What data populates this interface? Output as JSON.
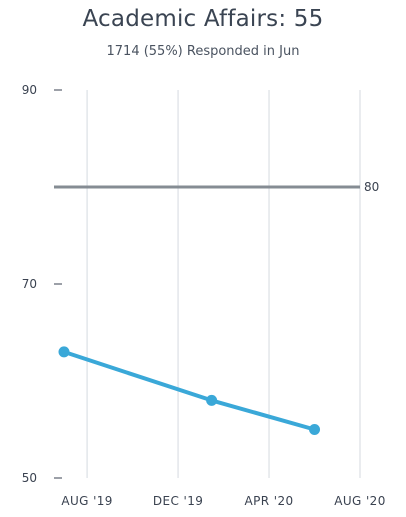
{
  "chart_data": {
    "type": "line",
    "title": "Academic Affairs: 55",
    "subtitle": "1714 (55%) Responded in Jun",
    "x_tick_labels": [
      "AUG '19",
      "DEC '19",
      "APR '20",
      "AUG '20"
    ],
    "x_tick_dates": [
      "2019-08-01",
      "2019-12-01",
      "2020-04-01",
      "2020-08-01"
    ],
    "y_ticks": [
      50,
      70,
      90
    ],
    "ylim": [
      50,
      90
    ],
    "xlim": [
      "2019-07-01",
      "2020-08-01"
    ],
    "grid": "vertical",
    "series": [
      {
        "color": "#3aa8d8",
        "points": [
          {
            "x": "2019-07-01",
            "y": 63
          },
          {
            "x": "2020-01-15",
            "y": 58
          },
          {
            "x": "2020-06-01",
            "y": 55
          }
        ]
      }
    ],
    "reference_line": {
      "value": 80,
      "label": "80",
      "color": "#858c93"
    }
  }
}
